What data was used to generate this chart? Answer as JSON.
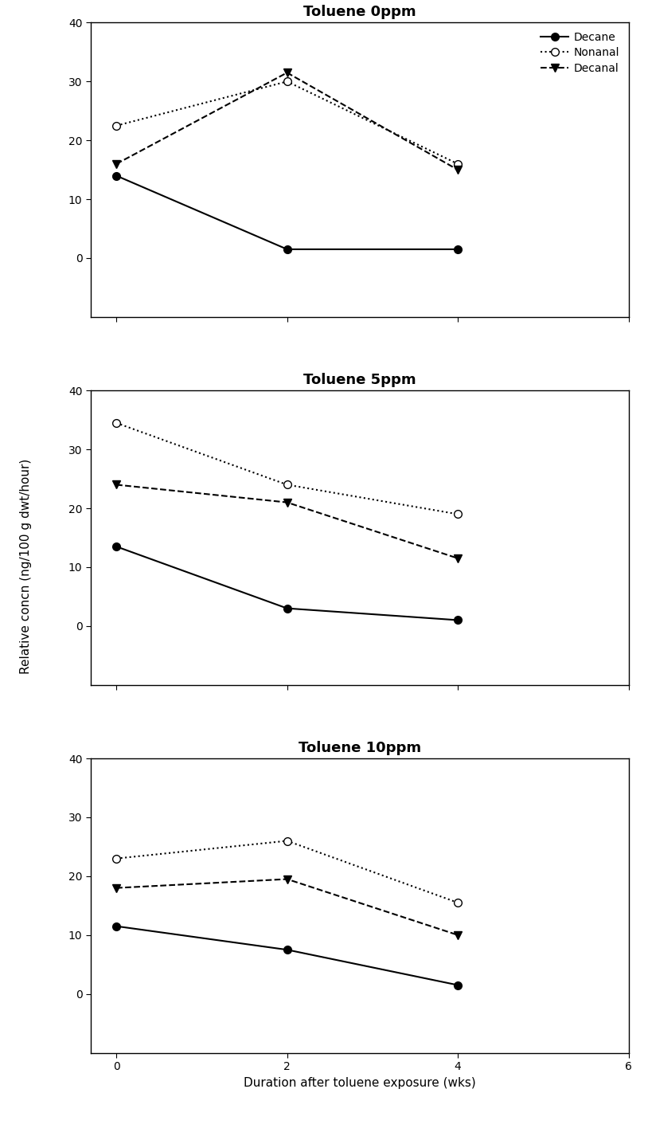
{
  "panels": [
    {
      "title": "Toluene 0ppm",
      "x": [
        0,
        2,
        4
      ],
      "decane": [
        14,
        1.5,
        1.5
      ],
      "nonanal": [
        22.5,
        30,
        16
      ],
      "decanal": [
        16,
        31.5,
        15
      ]
    },
    {
      "title": "Toluene 5ppm",
      "x": [
        0,
        2,
        4
      ],
      "decane": [
        13.5,
        3,
        1
      ],
      "nonanal": [
        34.5,
        24,
        19
      ],
      "decanal": [
        24,
        21,
        11.5
      ]
    },
    {
      "title": "Toluene 10ppm",
      "x": [
        0,
        2,
        4
      ],
      "decane": [
        11.5,
        7.5,
        1.5
      ],
      "nonanal": [
        23,
        26,
        15.5
      ],
      "decanal": [
        18,
        19.5,
        10
      ]
    }
  ],
  "xlim": [
    -0.3,
    6
  ],
  "ylim": [
    -10,
    40
  ],
  "yticks": [
    0,
    10,
    20,
    30,
    40
  ],
  "xticks": [
    0,
    2,
    4,
    6
  ],
  "xlabel": "Duration after toluene exposure (wks)",
  "ylabel": "Relative concn (ng/100 g dwt/hour)",
  "background_color": "#ffffff",
  "line_color": "#000000",
  "title_fontsize": 13,
  "label_fontsize": 11,
  "tick_fontsize": 10,
  "legend_fontsize": 10,
  "figsize": [
    8.14,
    14.21
  ],
  "dpi": 100
}
